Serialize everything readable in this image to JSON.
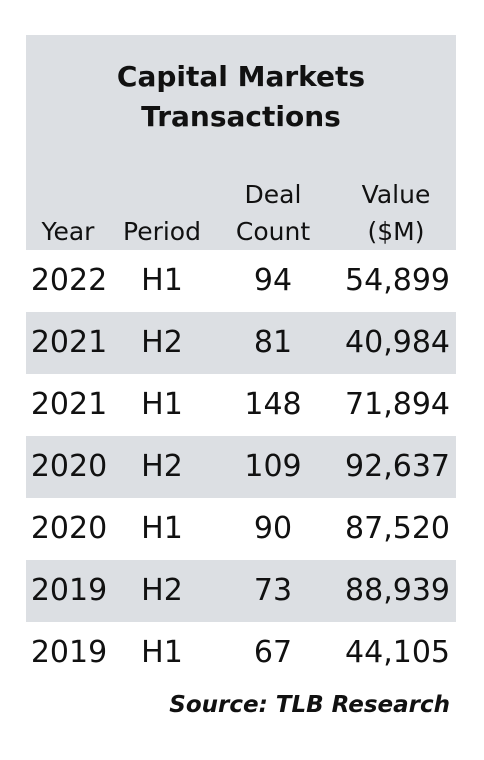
{
  "title": "Capital Markets Transactions",
  "table": {
    "header": [
      "Year",
      "Period",
      "Deal Count",
      "Value ($M)"
    ],
    "rows": [
      [
        "2022",
        "H1",
        "94",
        "54,899"
      ],
      [
        "2021",
        "H2",
        "81",
        "40,984"
      ],
      [
        "2021",
        "H1",
        "148",
        "71,894"
      ],
      [
        "2020",
        "H2",
        "109",
        "92,637"
      ],
      [
        "2020",
        "H1",
        "90",
        "87,520"
      ],
      [
        "2019",
        "H2",
        "73",
        "88,939"
      ],
      [
        "2019",
        "H1",
        "67",
        "44,105"
      ]
    ]
  },
  "source": "Source: TLB Research"
}
